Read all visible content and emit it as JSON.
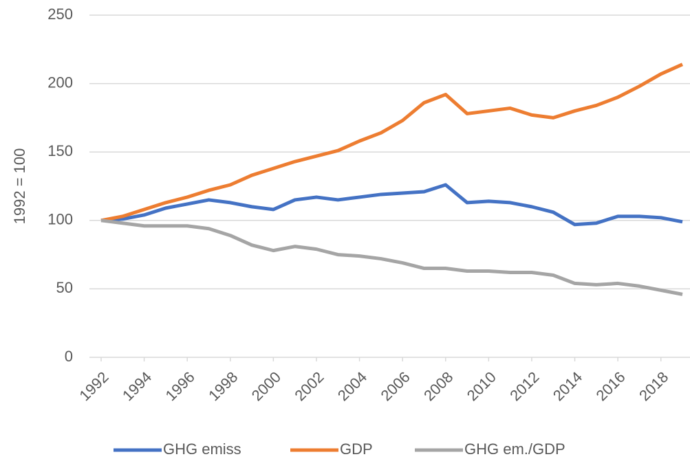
{
  "chart_data": {
    "type": "line",
    "y_label": "1992 = 100",
    "x": [
      1992,
      1993,
      1994,
      1995,
      1996,
      1997,
      1998,
      1999,
      2000,
      2001,
      2002,
      2003,
      2004,
      2005,
      2006,
      2007,
      2008,
      2009,
      2010,
      2011,
      2012,
      2013,
      2014,
      2015,
      2016,
      2017,
      2018,
      2019
    ],
    "xlim": [
      1992,
      2019
    ],
    "xticks": [
      1992,
      1994,
      1996,
      1998,
      2000,
      2002,
      2004,
      2006,
      2008,
      2010,
      2012,
      2014,
      2016,
      2018
    ],
    "ylim": [
      0,
      250
    ],
    "yticks": [
      0,
      50,
      100,
      150,
      200,
      250
    ],
    "grid": true,
    "legend": "bottom",
    "series": [
      {
        "name": "GHG emiss",
        "color": "#4472c4",
        "values": [
          100,
          101,
          104,
          109,
          112,
          115,
          113,
          110,
          108,
          115,
          117,
          115,
          117,
          119,
          120,
          121,
          126,
          113,
          114,
          113,
          110,
          106,
          97,
          98,
          103,
          103,
          102,
          99
        ]
      },
      {
        "name": "GDP",
        "color": "#ed7d31",
        "values": [
          100,
          103,
          108,
          113,
          117,
          122,
          126,
          133,
          138,
          143,
          147,
          151,
          158,
          164,
          173,
          186,
          192,
          178,
          180,
          182,
          177,
          175,
          180,
          184,
          190,
          198,
          207,
          214
        ]
      },
      {
        "name": "GHG em./GDP",
        "color": "#a5a5a5",
        "values": [
          100,
          98,
          96,
          96,
          96,
          94,
          89,
          82,
          78,
          81,
          79,
          75,
          74,
          72,
          69,
          65,
          65,
          63,
          63,
          62,
          62,
          60,
          54,
          53,
          54,
          52,
          49,
          46
        ]
      }
    ]
  }
}
